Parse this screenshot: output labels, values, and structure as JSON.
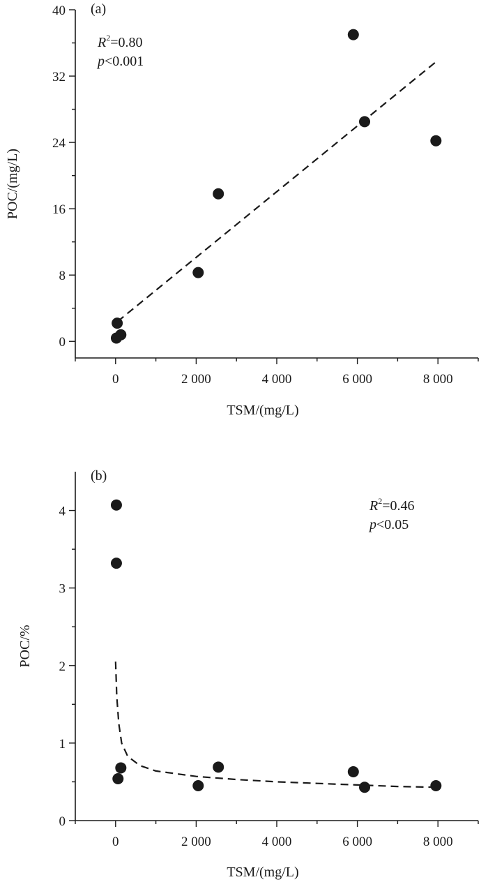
{
  "chart_data": [
    {
      "type": "scatter",
      "panel_label": "(a)",
      "xlabel": "TSM/(mg/L)",
      "ylabel": "POC/(mg/L)",
      "xlim": [
        -1000,
        9000
      ],
      "ylim": [
        -2,
        40
      ],
      "x_ticks": [
        0,
        2000,
        4000,
        6000,
        8000
      ],
      "x_tick_labels": [
        "0",
        "2 000",
        "4 000",
        "6 000",
        "8 000"
      ],
      "y_ticks": [
        0,
        8,
        16,
        24,
        32,
        40
      ],
      "y_tick_labels": [
        "0",
        "8",
        "16",
        "24",
        "32",
        "40"
      ],
      "stats": {
        "r2_symbol": "R",
        "r2_sup": "2",
        "r2_value": "=0.80",
        "p_symbol": "p",
        "p_value": "<0.001"
      },
      "points": [
        {
          "x": 20,
          "y": 0.4
        },
        {
          "x": 40,
          "y": 2.2
        },
        {
          "x": 130,
          "y": 0.8
        },
        {
          "x": 2050,
          "y": 8.3
        },
        {
          "x": 2550,
          "y": 17.8
        },
        {
          "x": 5900,
          "y": 37.0
        },
        {
          "x": 6180,
          "y": 26.5
        },
        {
          "x": 7950,
          "y": 24.2
        }
      ],
      "fit": {
        "style": "dashed",
        "model": "linear",
        "x_range": [
          50,
          7970
        ],
        "y_start": 2.4,
        "y_end": 33.8
      }
    },
    {
      "type": "scatter",
      "panel_label": "(b)",
      "xlabel": "TSM/(mg/L)",
      "ylabel": "POC/%",
      "xlim": [
        -1000,
        9000
      ],
      "ylim": [
        0,
        4.5
      ],
      "x_ticks": [
        0,
        2000,
        4000,
        6000,
        8000
      ],
      "x_tick_labels": [
        "0",
        "2 000",
        "4 000",
        "6 000",
        "8 000"
      ],
      "y_ticks": [
        0,
        1,
        2,
        3,
        4
      ],
      "y_tick_labels": [
        "0",
        "1",
        "2",
        "3",
        "4"
      ],
      "stats": {
        "r2_symbol": "R",
        "r2_sup": "2",
        "r2_value": "=0.46",
        "p_symbol": "p",
        "p_value": "<0.05"
      },
      "points": [
        {
          "x": 20,
          "y": 4.07
        },
        {
          "x": 20,
          "y": 3.32
        },
        {
          "x": 60,
          "y": 0.54
        },
        {
          "x": 130,
          "y": 0.68
        },
        {
          "x": 2050,
          "y": 0.45
        },
        {
          "x": 2550,
          "y": 0.69
        },
        {
          "x": 5900,
          "y": 0.63
        },
        {
          "x": 6180,
          "y": 0.43
        },
        {
          "x": 7950,
          "y": 0.45
        }
      ],
      "fit": {
        "style": "dashed",
        "model": "power",
        "points": [
          {
            "x": 0,
            "y": 2.05
          },
          {
            "x": 30,
            "y": 1.6
          },
          {
            "x": 80,
            "y": 1.25
          },
          {
            "x": 150,
            "y": 1.0
          },
          {
            "x": 300,
            "y": 0.83
          },
          {
            "x": 600,
            "y": 0.71
          },
          {
            "x": 1000,
            "y": 0.64
          },
          {
            "x": 2000,
            "y": 0.57
          },
          {
            "x": 3000,
            "y": 0.53
          },
          {
            "x": 4000,
            "y": 0.5
          },
          {
            "x": 5000,
            "y": 0.48
          },
          {
            "x": 6000,
            "y": 0.46
          },
          {
            "x": 7000,
            "y": 0.44
          },
          {
            "x": 7950,
            "y": 0.43
          }
        ]
      }
    }
  ]
}
